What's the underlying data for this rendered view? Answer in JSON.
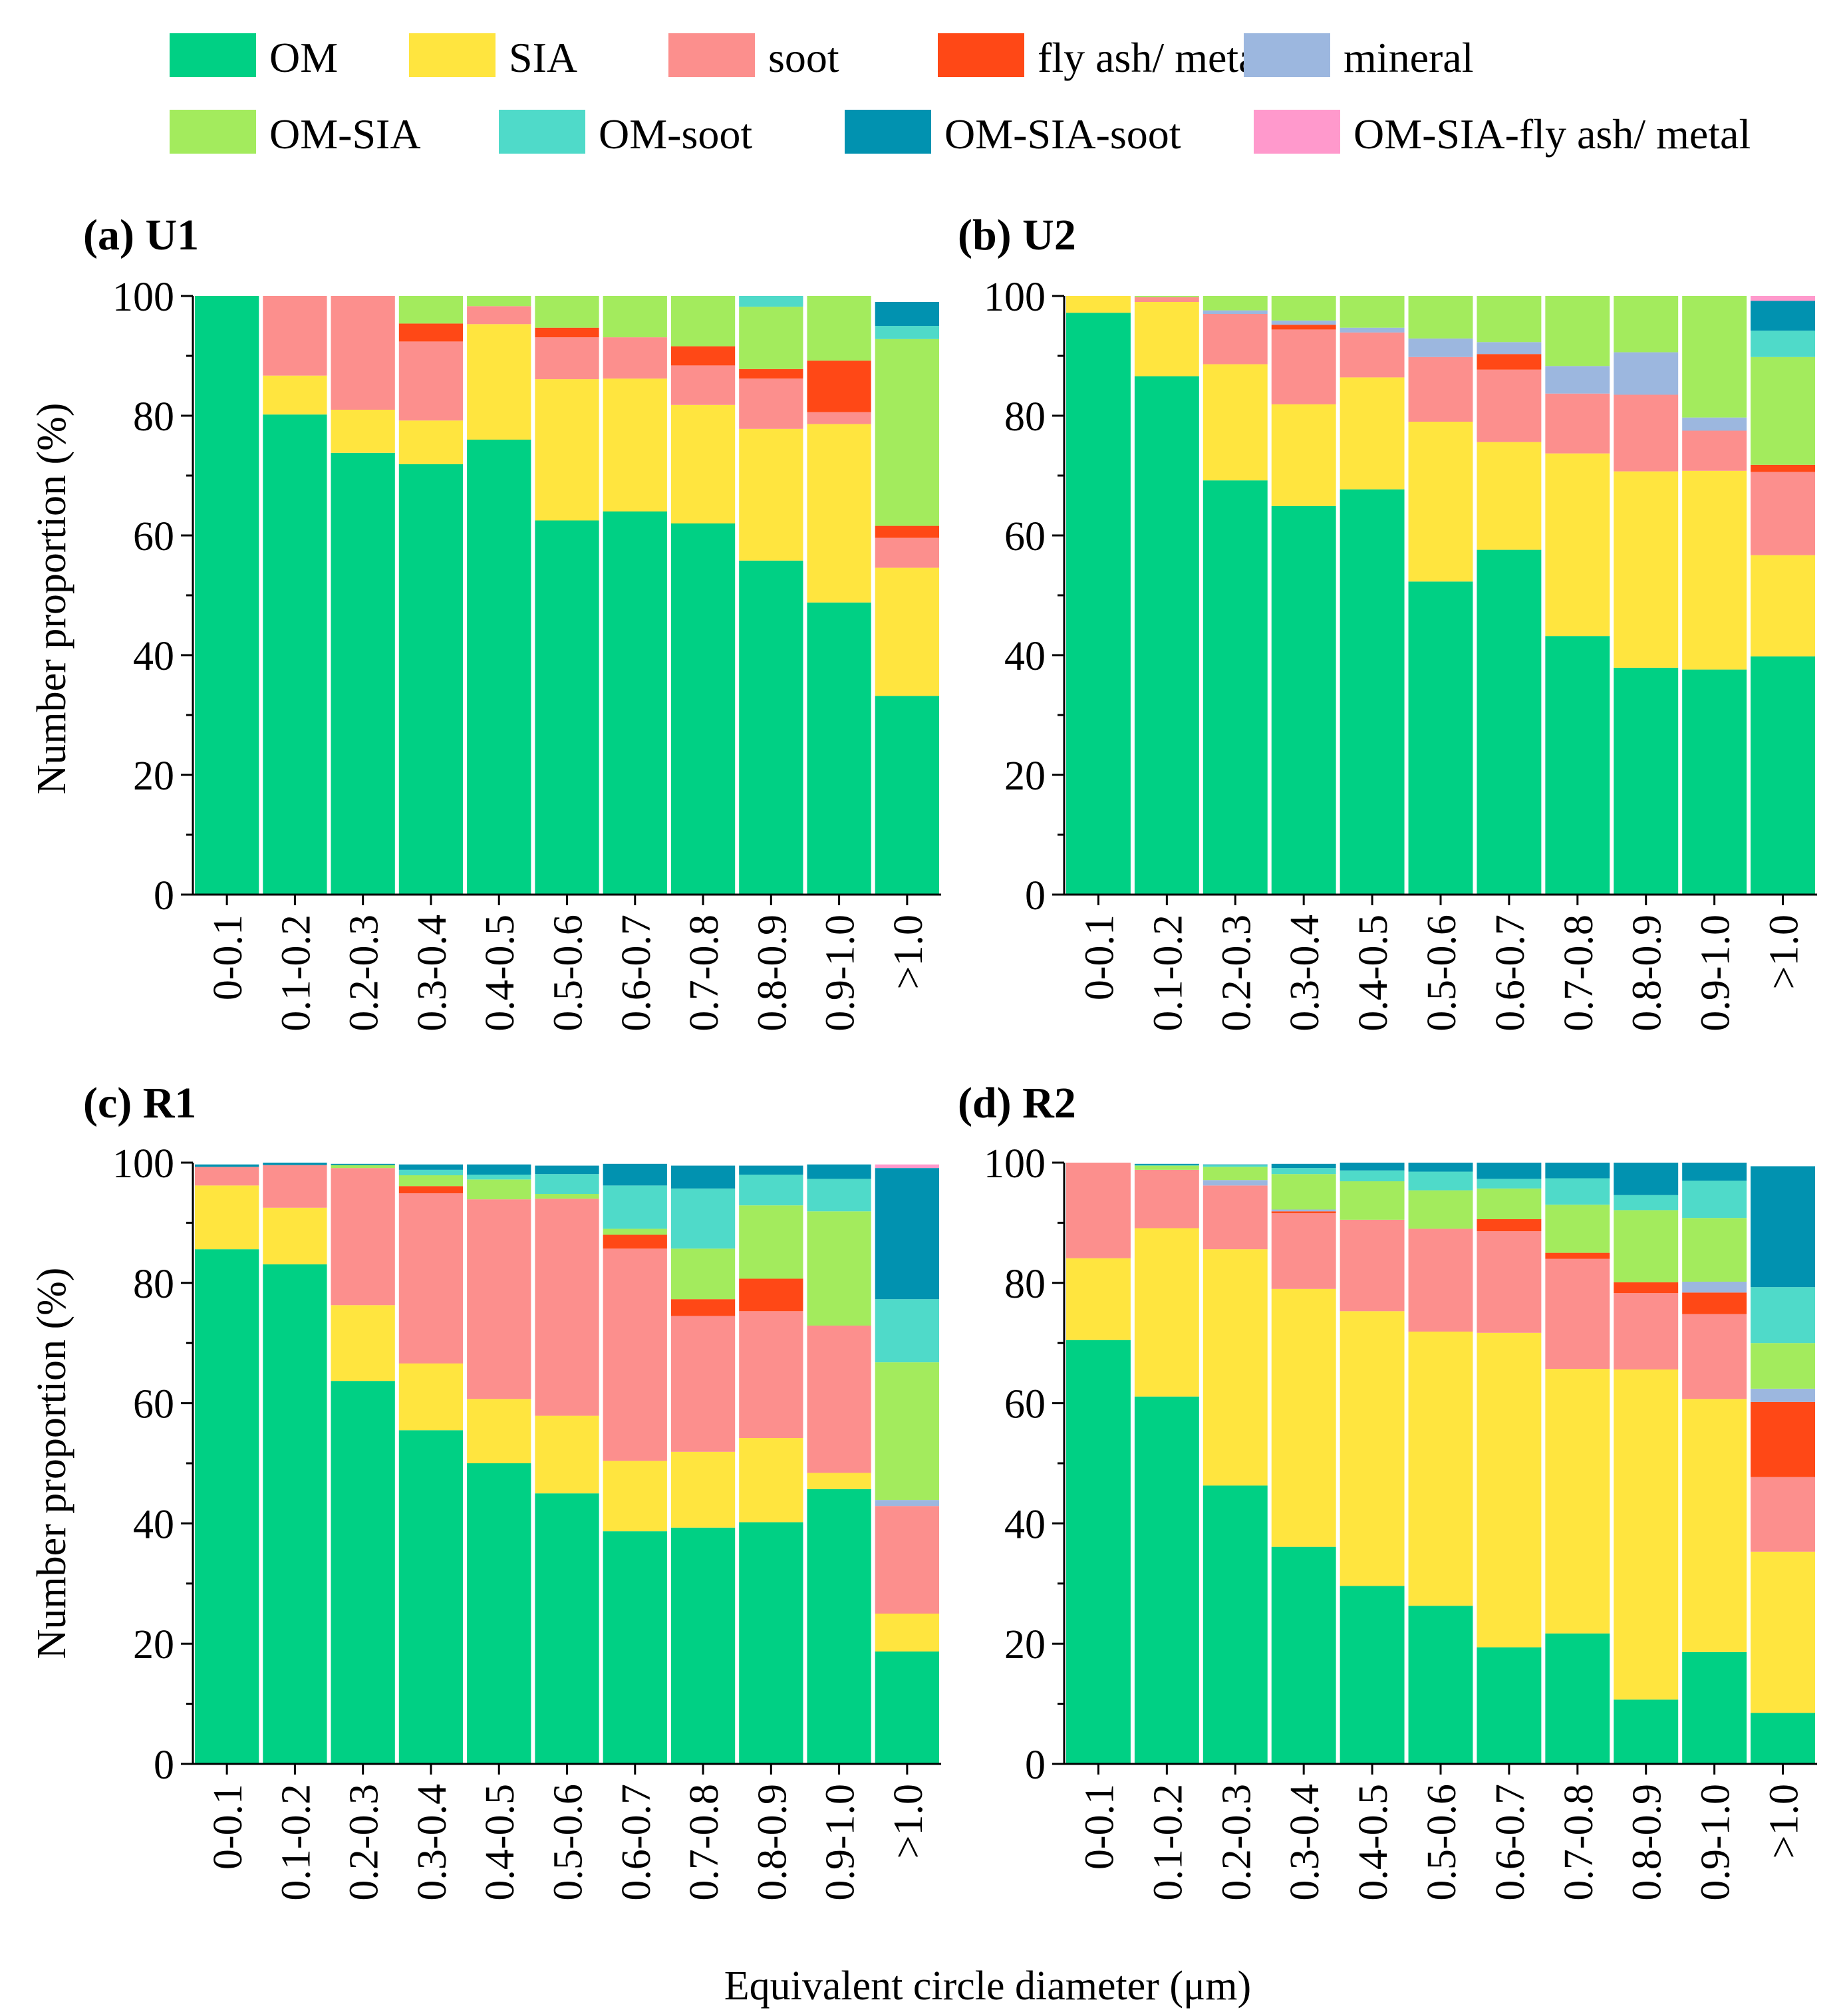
{
  "figure": {
    "xlabel": "Equivalent circle diameter (μm)",
    "ylabel": "Number proportion (%)"
  },
  "legend": [
    {
      "label": "OM",
      "color": "#00d084"
    },
    {
      "label": "SIA",
      "color": "#ffe53f"
    },
    {
      "label": "soot",
      "color": "#fc8f8d"
    },
    {
      "label": "fly ash/ metal",
      "color": "#ff4816"
    },
    {
      "label": "mineral",
      "color": "#9cb7df"
    },
    {
      "label": "OM-SIA",
      "color": "#a3eb5d"
    },
    {
      "label": "OM-soot",
      "color": "#4fdac9"
    },
    {
      "label": "OM-SIA-soot",
      "color": "#0192b0"
    },
    {
      "label": "OM-SIA-fly ash/ metal",
      "color": "#ff99cc"
    }
  ],
  "chart_data": [
    {
      "type": "bar",
      "stacked": true,
      "title": "(a) U1",
      "categories": [
        "0-0.1",
        "0.1-0.2",
        "0.2-0.3",
        "0.3-0.4",
        "0.4-0.5",
        "0.5-0.6",
        "0.6-0.7",
        "0.7-0.8",
        "0.8-0.9",
        "0.9-1.0",
        ">1.0"
      ],
      "ylim": [
        0,
        100
      ],
      "yticks": [
        0,
        20,
        40,
        60,
        80,
        100
      ],
      "series": [
        {
          "name": "OM",
          "values": [
            100,
            80.2,
            73.8,
            71.9,
            76,
            62.5,
            64,
            62,
            55.8,
            48.8,
            33.2
          ]
        },
        {
          "name": "SIA",
          "values": [
            0,
            6.5,
            7.2,
            7.3,
            19.3,
            23.6,
            22.2,
            19.8,
            22,
            29.8,
            21.4
          ]
        },
        {
          "name": "soot",
          "values": [
            0,
            13.3,
            19,
            13.2,
            3,
            7,
            6.9,
            6.6,
            8.4,
            2,
            5
          ]
        },
        {
          "name": "fly ash/ metal",
          "values": [
            0,
            0,
            0,
            3,
            0,
            1.6,
            0,
            3.2,
            1.6,
            8.6,
            2
          ]
        },
        {
          "name": "mineral",
          "values": [
            0,
            0,
            0,
            0,
            0,
            0,
            0,
            0,
            0,
            0,
            0
          ]
        },
        {
          "name": "OM-SIA",
          "values": [
            0,
            0,
            0,
            4.6,
            1.7,
            5.3,
            6.9,
            8.4,
            10.4,
            10.8,
            31.2
          ]
        },
        {
          "name": "OM-soot",
          "values": [
            0,
            0,
            0,
            0,
            0,
            0,
            0,
            0,
            1.8,
            0,
            2.2
          ]
        },
        {
          "name": "OM-SIA-soot",
          "values": [
            0,
            0,
            0,
            0,
            0,
            0,
            0,
            0,
            0,
            0,
            4
          ]
        },
        {
          "name": "OM-SIA-fly ash/ metal",
          "values": [
            0,
            0,
            0,
            0,
            0,
            0,
            0,
            0,
            0,
            0,
            0
          ]
        }
      ]
    },
    {
      "type": "bar",
      "stacked": true,
      "title": "(b) U2",
      "categories": [
        "0-0.1",
        "0.1-0.2",
        "0.2-0.3",
        "0.3-0.4",
        "0.4-0.5",
        "0.5-0.6",
        "0.6-0.7",
        "0.7-0.8",
        "0.8-0.9",
        "0.9-1.0",
        ">1.0"
      ],
      "ylim": [
        0,
        100
      ],
      "yticks": [
        0,
        20,
        40,
        60,
        80,
        100
      ],
      "series": [
        {
          "name": "OM",
          "values": [
            97.2,
            86.6,
            69.2,
            64.9,
            67.7,
            52.3,
            57.6,
            43.2,
            37.9,
            37.6,
            39.8
          ]
        },
        {
          "name": "SIA",
          "values": [
            2.8,
            12.4,
            19.4,
            17,
            18.7,
            26.7,
            18,
            30.5,
            32.8,
            33.2,
            16.9
          ]
        },
        {
          "name": "soot",
          "values": [
            0,
            0.8,
            8.4,
            12.5,
            7.5,
            10.8,
            12.1,
            10,
            12.8,
            6.7,
            13.9
          ]
        },
        {
          "name": "fly ash/ metal",
          "values": [
            0,
            0,
            0,
            0.8,
            0,
            0,
            2.6,
            0,
            0,
            0,
            1.2
          ]
        },
        {
          "name": "mineral",
          "values": [
            0,
            0,
            0.6,
            0.7,
            0.8,
            3.1,
            2,
            4.6,
            7.1,
            2.2,
            0
          ]
        },
        {
          "name": "OM-SIA",
          "values": [
            0,
            0.2,
            2.4,
            4.1,
            5.3,
            7.1,
            7.7,
            11.7,
            9.4,
            20.3,
            18
          ]
        },
        {
          "name": "OM-soot",
          "values": [
            0,
            0,
            0,
            0,
            0,
            0,
            0,
            0,
            0,
            0,
            4.4
          ]
        },
        {
          "name": "OM-SIA-soot",
          "values": [
            0,
            0,
            0,
            0,
            0,
            0,
            0,
            0,
            0,
            0,
            5
          ]
        },
        {
          "name": "OM-SIA-fly ash/ metal",
          "values": [
            0,
            0,
            0,
            0,
            0,
            0,
            0,
            0,
            0,
            0,
            0.8
          ]
        }
      ]
    },
    {
      "type": "bar",
      "stacked": true,
      "title": "(c) R1",
      "categories": [
        "0-0.1",
        "0.1-0.2",
        "0.2-0.3",
        "0.3-0.4",
        "0.4-0.5",
        "0.5-0.6",
        "0.6-0.7",
        "0.7-0.8",
        "0.8-0.9",
        "0.9-1.0",
        ">1.0"
      ],
      "ylim": [
        0,
        100
      ],
      "yticks": [
        0,
        20,
        40,
        60,
        80,
        100
      ],
      "series": [
        {
          "name": "OM",
          "values": [
            85.6,
            83.1,
            63.7,
            55.5,
            50,
            45,
            38.7,
            39.3,
            40.2,
            45.7,
            18.7
          ]
        },
        {
          "name": "SIA",
          "values": [
            10.6,
            9.4,
            12.6,
            11.1,
            10.7,
            12.9,
            11.7,
            12.6,
            14,
            2.7,
            6.3
          ]
        },
        {
          "name": "soot",
          "values": [
            3.1,
            7.1,
            22.8,
            28.3,
            33.2,
            36.1,
            35.3,
            22.6,
            21.1,
            24.5,
            17.9
          ]
        },
        {
          "name": "fly ash/ metal",
          "values": [
            0,
            0,
            0,
            1.2,
            0,
            0,
            2.3,
            2.8,
            5.4,
            0,
            0
          ]
        },
        {
          "name": "mineral",
          "values": [
            0,
            0,
            0,
            0,
            0,
            0,
            0,
            0,
            0,
            0,
            1
          ]
        },
        {
          "name": "OM-SIA",
          "values": [
            0,
            0,
            0.5,
            1.8,
            3.3,
            0.8,
            1,
            8.4,
            12.2,
            19,
            22.9
          ]
        },
        {
          "name": "OM-soot",
          "values": [
            0,
            0,
            0,
            0.9,
            0.8,
            3.3,
            7.2,
            10,
            5.1,
            5.4,
            10.5
          ]
        },
        {
          "name": "OM-SIA-soot",
          "values": [
            0.4,
            0.4,
            0.2,
            0.9,
            1.7,
            1.4,
            3.6,
            3.8,
            1.5,
            2.4,
            21.8
          ]
        },
        {
          "name": "OM-SIA-fly ash/ metal",
          "values": [
            0,
            0,
            0,
            0,
            0,
            0,
            0,
            0,
            0,
            0,
            0.6
          ]
        }
      ]
    },
    {
      "type": "bar",
      "stacked": true,
      "title": "(d) R2",
      "categories": [
        "0-0.1",
        "0.1-0.2",
        "0.2-0.3",
        "0.3-0.4",
        "0.4-0.5",
        "0.5-0.6",
        "0.6-0.7",
        "0.7-0.8",
        "0.8-0.9",
        "0.9-1.0",
        ">1.0"
      ],
      "ylim": [
        0,
        100
      ],
      "yticks": [
        0,
        20,
        40,
        60,
        80,
        100
      ],
      "series": [
        {
          "name": "OM",
          "values": [
            70.5,
            61.1,
            46.3,
            36.1,
            29.6,
            26.3,
            19.4,
            21.7,
            10.7,
            18.6,
            8.5
          ]
        },
        {
          "name": "SIA",
          "values": [
            13.6,
            28,
            39.3,
            42.9,
            45.7,
            45.6,
            52.3,
            44,
            54.9,
            42.1,
            26.8
          ]
        },
        {
          "name": "soot",
          "values": [
            15.9,
            9.7,
            10.6,
            12.6,
            15.2,
            17.1,
            16.9,
            18.3,
            12.7,
            14.1,
            12.4
          ]
        },
        {
          "name": "fly ash/ metal",
          "values": [
            0,
            0,
            0,
            0.3,
            0,
            0,
            2,
            1,
            1.8,
            3.6,
            12.5
          ]
        },
        {
          "name": "mineral",
          "values": [
            0,
            0,
            0.9,
            0.3,
            0,
            0,
            0,
            0,
            0,
            1.8,
            2.2
          ]
        },
        {
          "name": "OM-SIA",
          "values": [
            0,
            0.7,
            2.2,
            5.9,
            6.4,
            6.4,
            5.1,
            8,
            12,
            10.6,
            7.6
          ]
        },
        {
          "name": "OM-soot",
          "values": [
            0,
            0.1,
            0.3,
            1,
            1.8,
            3.1,
            1.6,
            4.4,
            2.5,
            6.2,
            9.3
          ]
        },
        {
          "name": "OM-SIA-soot",
          "values": [
            0,
            0.2,
            0.1,
            0.7,
            1.3,
            1.5,
            2.7,
            2.6,
            5.4,
            3,
            20.1
          ]
        },
        {
          "name": "OM-SIA-fly ash/ metal",
          "values": [
            0,
            0,
            0,
            0,
            0,
            0,
            0,
            0,
            0,
            0,
            0
          ]
        }
      ]
    }
  ]
}
